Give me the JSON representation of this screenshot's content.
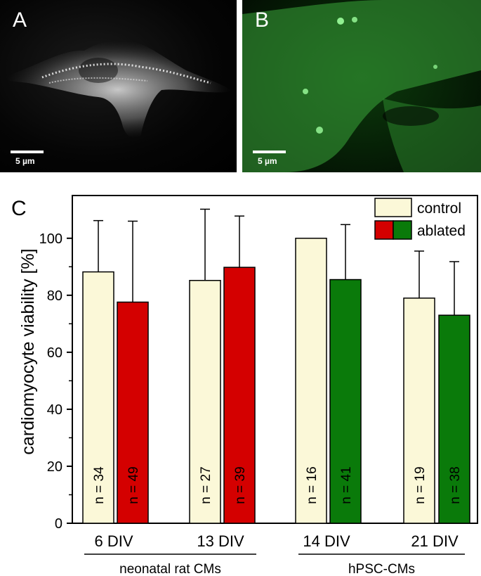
{
  "panels": {
    "A": {
      "letter": "A",
      "scale": "5 µm"
    },
    "B": {
      "letter": "B",
      "scale": "5 µm"
    },
    "C": {
      "letter": "C"
    }
  },
  "colors": {
    "control": "#fbf8d8",
    "ablated_rat": "#d40000",
    "ablated_hpsc": "#0a7a0a",
    "panelA_signal": "#e0e0e0",
    "panelB_signal": "#4fd04f"
  },
  "chart_data": {
    "type": "bar",
    "ylabel": "cardiomyocyte viability [%]",
    "xlabel": "",
    "ylim": [
      0,
      115
    ],
    "yticks": [
      0,
      20,
      40,
      60,
      80,
      100
    ],
    "legend_position": "top-right",
    "legend": [
      {
        "label": "control"
      },
      {
        "label": "ablated"
      }
    ],
    "categories": [
      "6 DIV",
      "13 DIV",
      "14 DIV",
      "21 DIV"
    ],
    "groups": [
      {
        "label": "neonatal rat CMs",
        "categories": [
          "6 DIV",
          "13 DIV"
        ]
      },
      {
        "label": "hPSC-CMs",
        "categories": [
          "14 DIV",
          "21 DIV"
        ]
      }
    ],
    "series": [
      {
        "name": "control",
        "values": [
          88.2,
          85.2,
          100,
          79
        ],
        "errors": [
          18,
          25,
          0,
          16.5
        ],
        "n": [
          "n = 34",
          "n = 27",
          "n = 16",
          "n = 19"
        ]
      },
      {
        "name": "ablated",
        "values": [
          77.6,
          89.8,
          85.5,
          73
        ],
        "errors": [
          28.4,
          18,
          19.3,
          18.8
        ],
        "n": [
          "n = 49",
          "n = 39",
          "n = 41",
          "n = 38"
        ]
      }
    ]
  }
}
